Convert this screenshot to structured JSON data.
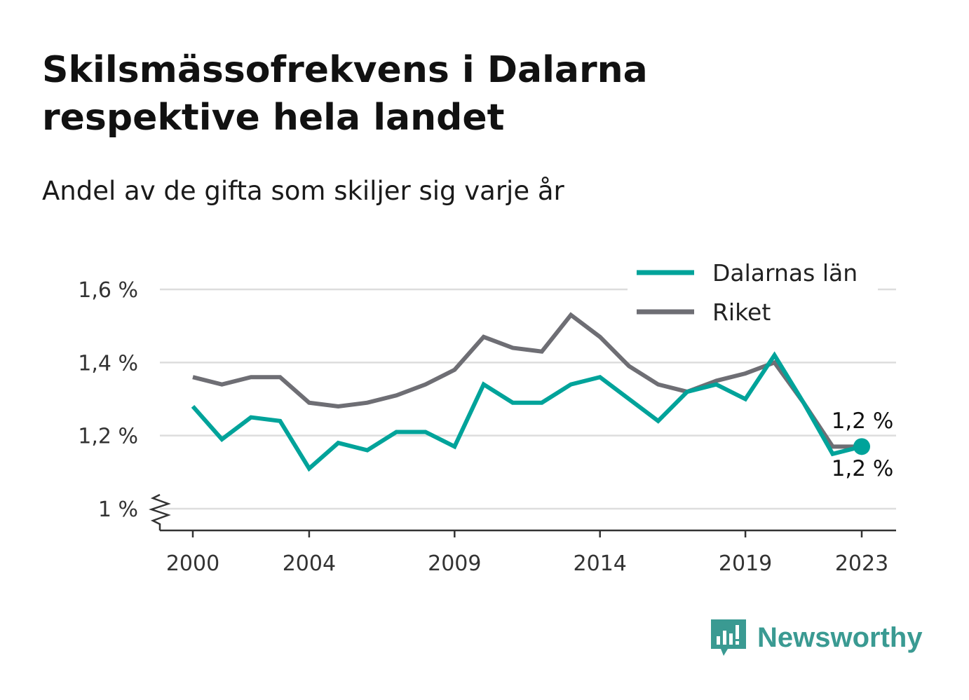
{
  "header": {
    "title_line1": "Skilsmässofrekvens i Dalarna",
    "title_line2": "respektive hela landet",
    "subtitle": "Andel av de gifta som skiljer sig varje år"
  },
  "brand": {
    "name": "Newsworthy",
    "color": "#3a9a92"
  },
  "chart_data": {
    "type": "line",
    "x": [
      2000,
      2001,
      2002,
      2003,
      2004,
      2005,
      2006,
      2007,
      2008,
      2009,
      2010,
      2011,
      2012,
      2013,
      2014,
      2015,
      2016,
      2017,
      2018,
      2019,
      2020,
      2021,
      2022,
      2023
    ],
    "x_ticks": [
      {
        "value": 2000,
        "label": "2000"
      },
      {
        "value": 2004,
        "label": "2004"
      },
      {
        "value": 2009,
        "label": "2009"
      },
      {
        "value": 2014,
        "label": "2014"
      },
      {
        "value": 2019,
        "label": "2019"
      },
      {
        "value": 2023,
        "label": "2023"
      }
    ],
    "y_ticks": [
      {
        "value": 1.0,
        "label": "1 %"
      },
      {
        "value": 1.2,
        "label": "1,2 %"
      },
      {
        "value": 1.4,
        "label": "1,4 %"
      },
      {
        "value": 1.6,
        "label": "1,6 %"
      }
    ],
    "ylim": [
      0.94,
      1.6
    ],
    "xlim": [
      1998.8,
      2024.2
    ],
    "y_axis_break": true,
    "grid": true,
    "legend_position": "top-right",
    "series": [
      {
        "name": "Dalarnas län",
        "color": "#00a39a",
        "values": [
          1.28,
          1.19,
          1.25,
          1.24,
          1.11,
          1.18,
          1.16,
          1.21,
          1.21,
          1.17,
          1.34,
          1.29,
          1.29,
          1.34,
          1.36,
          1.3,
          1.24,
          1.32,
          1.34,
          1.3,
          1.42,
          1.29,
          1.15,
          1.17
        ],
        "end_label": "1,2 %",
        "end_marker": true
      },
      {
        "name": "Riket",
        "color": "#6e6e74",
        "values": [
          1.36,
          1.34,
          1.36,
          1.36,
          1.29,
          1.28,
          1.29,
          1.31,
          1.34,
          1.38,
          1.47,
          1.44,
          1.43,
          1.53,
          1.47,
          1.39,
          1.34,
          1.32,
          1.35,
          1.37,
          1.4,
          1.29,
          1.17,
          1.17
        ],
        "end_label": "1,2 %",
        "end_marker": false
      }
    ]
  }
}
